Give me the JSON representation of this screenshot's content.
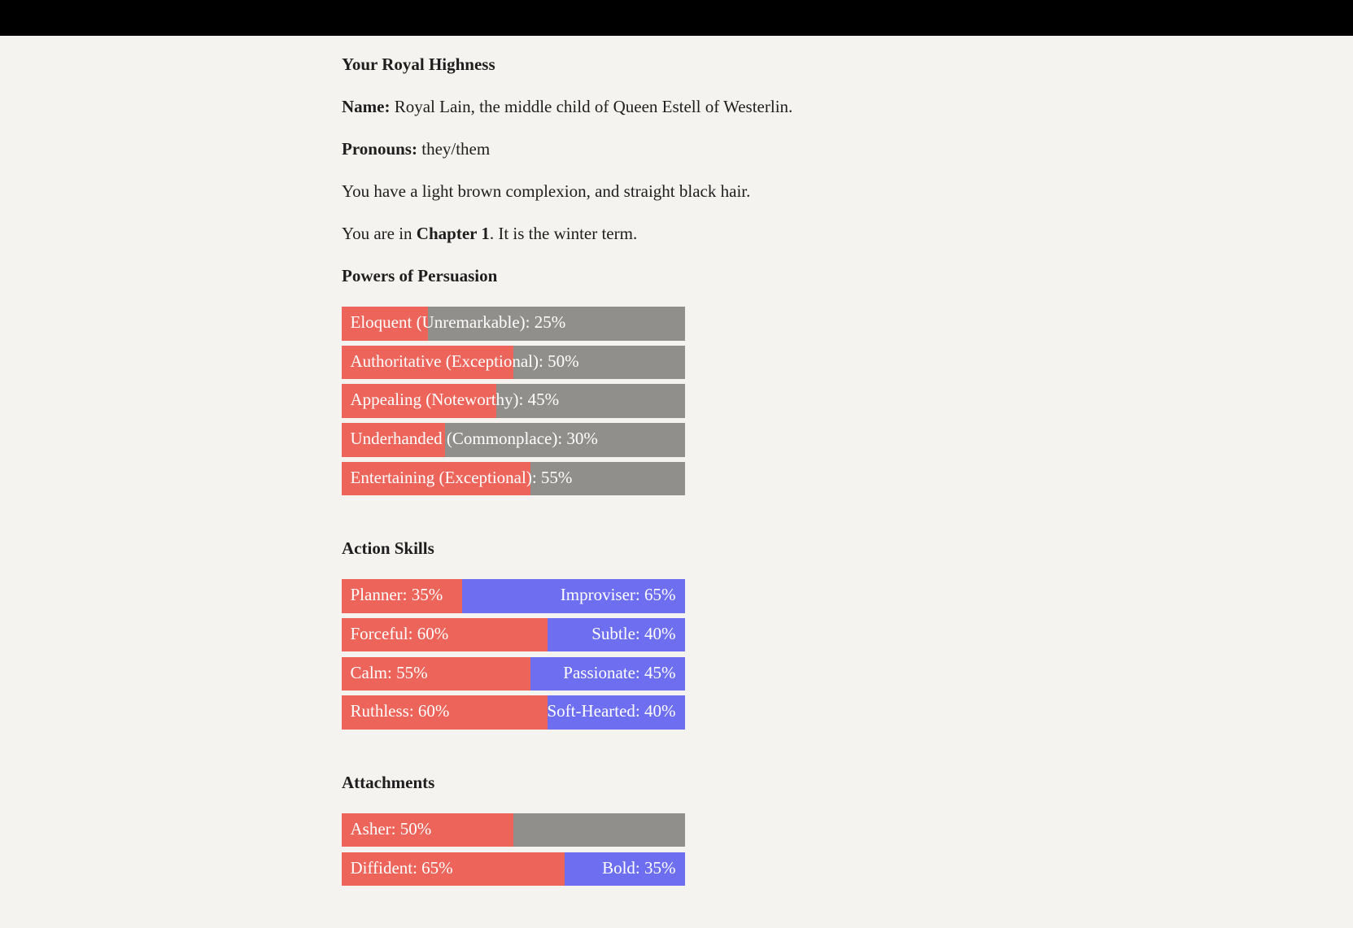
{
  "header": {
    "title": "Your Royal Highness"
  },
  "name": {
    "label": "Name:",
    "text": "Royal Lain, the middle child of Queen Estell of Westerlin."
  },
  "pronouns": {
    "label": "Pronouns:",
    "text": "they/them"
  },
  "appearance": "You have a light brown complexion, and straight black hair.",
  "chapter": {
    "before": "You are in",
    "bold": "Chapter 1",
    "after": ". It is the winter term."
  },
  "sections": [
    {
      "title": "Powers of Persuasion",
      "items": [
        {
          "label": "Eloquent (Unremarkable): 25%",
          "value": 25
        },
        {
          "label": "Authoritative (Exceptional): 50%",
          "value": 50
        },
        {
          "label": "Appealing (Noteworthy): 45%",
          "value": 45
        },
        {
          "label": "Underhanded (Commonplace): 30%",
          "value": 30
        },
        {
          "label": "Entertaining (Exceptional): 55%",
          "value": 55
        }
      ]
    },
    {
      "title": "Action Skills",
      "items": [
        {
          "left": {
            "label": "Planner: 35%",
            "value": 35
          },
          "right": {
            "label": "Improviser: 65%",
            "value": 65
          }
        },
        {
          "left": {
            "label": "Forceful: 60%",
            "value": 60
          },
          "right": {
            "label": "Subtle: 40%",
            "value": 40
          }
        },
        {
          "left": {
            "label": "Calm: 55%",
            "value": 55
          },
          "right": {
            "label": "Passionate: 45%",
            "value": 45
          }
        },
        {
          "left": {
            "label": "Ruthless: 60%",
            "value": 60
          },
          "right": {
            "label": "Soft-Hearted: 40%",
            "value": 40
          }
        }
      ]
    },
    {
      "title": "Attachments",
      "items": [
        {
          "label": "Asher: 50%",
          "value": 50
        },
        {
          "left": {
            "label": "Diffident: 65%",
            "value": 65
          },
          "right": {
            "label": "Bold: 35%",
            "value": 35
          }
        }
      ]
    }
  ]
}
